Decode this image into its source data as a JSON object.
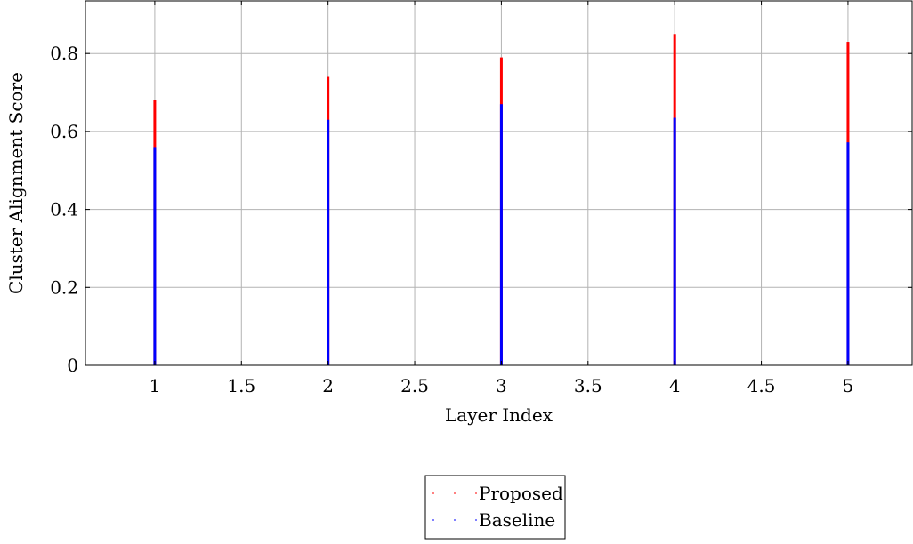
{
  "chart_data": {
    "type": "bar",
    "title": "",
    "xlabel": "Layer Index",
    "ylabel": "Cluster Alignment Score",
    "x": [
      1,
      2,
      3,
      4,
      5
    ],
    "xlim": [
      0.6,
      5.37
    ],
    "ylim": [
      0,
      0.935
    ],
    "xticks": [
      1,
      1.5,
      2,
      2.5,
      3,
      3.5,
      4,
      4.5,
      5
    ],
    "xtick_labels": [
      "1",
      "1.5",
      "2",
      "2.5",
      "3",
      "3.5",
      "4",
      "4.5",
      "5"
    ],
    "yticks": [
      0,
      0.2,
      0.4,
      0.6,
      0.8
    ],
    "ytick_labels": [
      "0",
      "0.2",
      "0.4",
      "0.6",
      "0.8"
    ],
    "grid": true,
    "legend_position": "bottom-center",
    "series": [
      {
        "name": "Proposed",
        "color": "#ff0000",
        "values": [
          0.68,
          0.74,
          0.79,
          0.85,
          0.83
        ]
      },
      {
        "name": "Baseline",
        "color": "#0000ff",
        "values": [
          0.56,
          0.63,
          0.67,
          0.635,
          0.572
        ]
      }
    ]
  }
}
